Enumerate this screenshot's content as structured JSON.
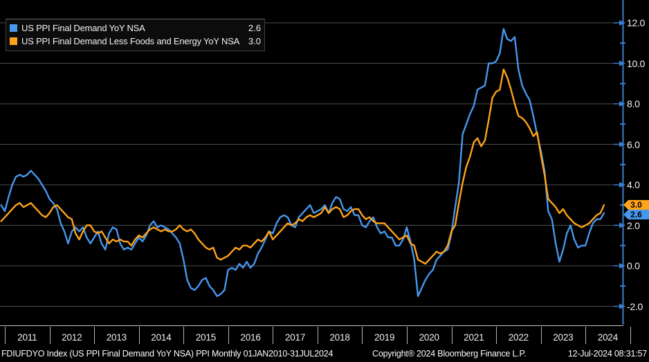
{
  "legend": {
    "items": [
      {
        "label": "US PPI Final Demand YoY NSA",
        "value": "2.6",
        "color": "#4698ee"
      },
      {
        "label": "US PPI Final Demand Less Foods and Energy YoY NSA",
        "value": "3.0",
        "color": "#ffa31a"
      }
    ]
  },
  "y_axis": {
    "tick_labels": [
      "12.0",
      "10.0",
      "8.0",
      "6.0",
      "4.0",
      "2.0",
      "0.0",
      "-2.0"
    ],
    "tick_values": [
      12,
      10,
      8,
      6,
      4,
      2,
      0,
      -2
    ],
    "minor_tick_values": [
      11,
      9,
      7,
      5,
      3,
      1,
      -1
    ],
    "axis_color": "#3d7fd0",
    "last_value_tags": [
      {
        "value": "3.0",
        "color": "#ffa31a",
        "text_color": "#000000"
      },
      {
        "value": "2.6",
        "color": "#4698ee",
        "text_color": "#000000"
      }
    ]
  },
  "x_axis": {
    "year_labels": [
      "2011",
      "2012",
      "2013",
      "2014",
      "2015",
      "2016",
      "2017",
      "2018",
      "2019",
      "2020",
      "2021",
      "2022",
      "2023",
      "2024"
    ]
  },
  "footer": {
    "left": "FDIUFDYO Index (US PPI Final Demand YoY NSA) PPI  Monthly 01JAN2010-31JUL2024",
    "copyright": "Copyright® 2024 Bloomberg Finance L.P.",
    "datetime": "12-Jul-2024 08:31:57"
  },
  "chart_data": {
    "type": "line",
    "title": "US PPI Final Demand YoY NSA vs Less Foods and Energy",
    "frequency": "monthly",
    "start_month": "2010-12",
    "end_month": "2024-06",
    "requested_range": "01JAN2010-31JUL2024",
    "ylim": [
      -2.9,
      13.1
    ],
    "grid": true,
    "legend_position": "top-left",
    "background": "#000000",
    "gridline_color": "#4e4e4e",
    "series": [
      {
        "name": "US PPI Final Demand YoY NSA",
        "color": "#4698ee",
        "last_value": 2.6,
        "values": [
          3.0,
          2.7,
          3.4,
          4.0,
          4.4,
          4.5,
          4.4,
          4.5,
          4.7,
          4.5,
          4.3,
          4.0,
          3.7,
          3.3,
          3.1,
          2.8,
          2.1,
          1.7,
          1.1,
          1.7,
          1.9,
          1.7,
          1.9,
          1.4,
          1.1,
          1.4,
          1.7,
          1.1,
          0.8,
          1.6,
          1.9,
          1.8,
          1.1,
          0.8,
          0.9,
          0.8,
          1.1,
          1.4,
          1.2,
          1.5,
          2.0,
          2.2,
          1.9,
          2.0,
          1.9,
          1.8,
          1.6,
          1.4,
          1.1,
          0.3,
          -0.7,
          -1.1,
          -1.2,
          -1.0,
          -0.7,
          -0.6,
          -1.0,
          -1.2,
          -1.5,
          -1.4,
          -1.2,
          -0.2,
          -0.1,
          -0.2,
          0.1,
          -0.1,
          0.2,
          -0.1,
          0.1,
          0.6,
          0.9,
          1.3,
          1.7,
          1.6,
          2.1,
          2.4,
          2.5,
          2.4,
          2.0,
          1.9,
          2.4,
          2.6,
          2.8,
          3.0,
          2.6,
          2.7,
          2.8,
          3.0,
          2.6,
          3.1,
          3.4,
          3.3,
          2.8,
          2.7,
          2.9,
          2.5,
          2.5,
          2.0,
          1.9,
          2.2,
          2.4,
          1.9,
          1.6,
          1.7,
          1.4,
          1.4,
          1.0,
          1.0,
          1.3,
          1.9,
          1.2,
          0.3,
          -1.5,
          -1.1,
          -0.7,
          -0.4,
          -0.2,
          0.3,
          0.5,
          0.7,
          0.8,
          1.6,
          2.9,
          4.1,
          6.5,
          7.0,
          7.5,
          7.9,
          8.7,
          8.8,
          8.9,
          10.0,
          10.0,
          10.1,
          10.5,
          11.7,
          11.2,
          11.1,
          11.3,
          9.7,
          8.9,
          8.5,
          8.2,
          7.4,
          6.5,
          5.7,
          4.7,
          2.7,
          2.3,
          1.1,
          0.2,
          0.8,
          1.6,
          2.0,
          1.3,
          0.9,
          1.0,
          1.0,
          1.6,
          2.1,
          2.3,
          2.3,
          2.6
        ]
      },
      {
        "name": "US PPI Final Demand Less Foods and Energy YoY NSA",
        "color": "#ffa31a",
        "last_value": 3.0,
        "values": [
          2.2,
          2.4,
          2.6,
          2.8,
          3.0,
          3.1,
          2.9,
          3.0,
          3.1,
          2.9,
          2.7,
          2.5,
          2.4,
          2.6,
          2.9,
          3.0,
          2.8,
          2.6,
          2.4,
          2.3,
          1.6,
          1.3,
          1.7,
          2.0,
          2.0,
          1.7,
          1.6,
          1.7,
          1.4,
          1.1,
          1.3,
          1.2,
          1.3,
          1.2,
          1.2,
          1.0,
          1.3,
          1.5,
          1.4,
          1.6,
          1.8,
          1.9,
          1.8,
          1.7,
          1.8,
          1.7,
          1.7,
          1.8,
          2.0,
          1.8,
          1.7,
          1.8,
          1.6,
          1.3,
          1.1,
          0.9,
          0.8,
          0.9,
          0.4,
          0.3,
          0.4,
          0.5,
          0.7,
          0.9,
          0.8,
          1.0,
          1.0,
          0.9,
          1.1,
          1.3,
          1.2,
          1.4,
          1.7,
          1.3,
          1.5,
          1.7,
          1.9,
          2.1,
          2.0,
          2.1,
          2.3,
          2.2,
          2.4,
          2.5,
          2.4,
          2.5,
          2.6,
          2.9,
          2.6,
          2.8,
          2.9,
          2.8,
          2.4,
          2.5,
          2.7,
          2.8,
          2.8,
          2.5,
          2.3,
          2.4,
          2.2,
          2.1,
          2.1,
          2.1,
          1.9,
          1.7,
          1.5,
          1.3,
          1.4,
          1.5,
          1.1,
          1.0,
          0.3,
          0.2,
          0.1,
          0.3,
          0.5,
          0.7,
          0.6,
          0.7,
          1.0,
          1.7,
          2.0,
          3.1,
          4.1,
          4.9,
          5.4,
          6.1,
          6.3,
          5.9,
          6.2,
          7.2,
          8.3,
          8.6,
          8.7,
          9.7,
          9.3,
          8.7,
          8.0,
          7.4,
          7.3,
          7.1,
          6.8,
          6.4,
          6.6,
          5.5,
          4.5,
          3.3,
          3.1,
          2.9,
          2.6,
          2.8,
          2.5,
          2.3,
          2.1,
          2.0,
          1.9,
          2.0,
          2.1,
          2.3,
          2.5,
          2.6,
          3.0
        ]
      }
    ]
  }
}
